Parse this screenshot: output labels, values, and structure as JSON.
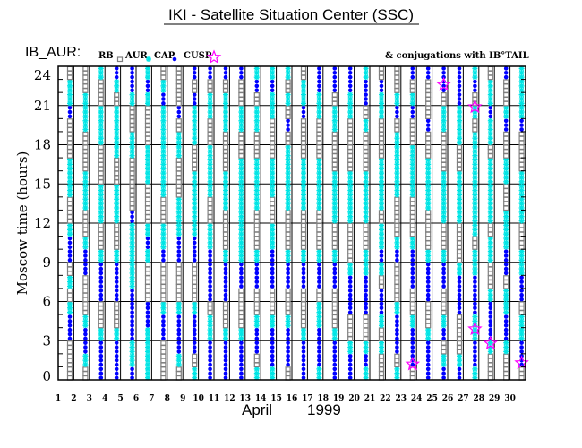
{
  "chart_data": {
    "type": "scatter",
    "title": "IKI - Satellite Situation Center (SSC)",
    "satellite_label": "IB_AUR:",
    "conjugation_note": "& conjugations with IB°TAIL",
    "xlabel_month": "April",
    "xlabel_year": "1999",
    "ylabel": "Moscow time (hours)",
    "ylim": [
      0,
      24
    ],
    "yticks": [
      0,
      3,
      6,
      9,
      12,
      15,
      18,
      21,
      24
    ],
    "xticks": [
      1,
      2,
      3,
      4,
      5,
      6,
      7,
      8,
      9,
      10,
      11,
      12,
      13,
      14,
      15,
      16,
      17,
      18,
      19,
      20,
      21,
      22,
      23,
      24,
      25,
      26,
      27,
      28,
      29,
      30
    ],
    "grid": true,
    "legend_placement": "top",
    "legend": [
      {
        "code": "R",
        "label": "RB",
        "marker": "square-outline",
        "color": "#7f7f7f"
      },
      {
        "code": "A",
        "label": "AUR",
        "marker": "asterisk",
        "color": "#00e5e5"
      },
      {
        "code": "C",
        "label": "CAP",
        "marker": "dot",
        "color": "#0000ff"
      },
      {
        "code": "U",
        "label": "CUSP",
        "marker": "star-outline",
        "color": "#ff00ff"
      }
    ],
    "hourly_region_by_day": {
      "1": "RRRCCARARCCARRAAARRRCAAR",
      "2": "RACCARRRCCARRAAARRRAAARR",
      "3": "CCCARRCCCARRAAARRRAAARRA",
      "4": "CCCARRCCCARRAAARRAAAARAC",
      "5": "CAACCCCAAAAACRRRRAARRACC",
      "6": "AAAACCRRRACARRRAAARRRACA",
      "7": "RRRCCARRRCAARRAAAAAAACAR",
      "8": "RACCCARRRCCAAARRRAARCRRR",
      "9": "ARCCCARRRCCAAAAARRAAACRC",
      "10": "CCCAARCCCCAARRAAAARRAARC",
      "11": "CCCARRCCCARRRAAARRRAAARC",
      "12": "CCCARRRCCAAAAAAAARRAARRC",
      "13": "ARCCARRCCARRRAAAARRAARCA",
      "14": "ACCCARRCCCAARRAAARRRAACA",
      "15": "RCCCARRCCARRRAAAAARCRARA",
      "16": "CCCARRRCCARRRAAAARRRCAAR",
      "17": "ACCCAARCCARRRAAAARRRAACC",
      "18": "CCCARRRCCARRAAAARRRAARCC",
      "19": "CCARRCCCARRRAAAARRRRAACC",
      "20": "ACARRCCCAARRAAAARRRARCCA",
      "21": "RRARACCRACAARAAAARRRAACR",
      "22": "ARCCCARRRCARRRAAAAARCARR",
      "23": "RCCCARRCCCARRRAAAARRCARC",
      "24": "CCCARRCCCARRRAAAARRCRRRC",
      "25": "CARCARRCCARRAAAARRRAARCC",
      "26": "CARRRCCCARRRAAAARRAAACCC",
      "27": "ACCAACCCAARAAAAAAAARARCA",
      "28": "RRACCCARRAARAAAAARAACAAR",
      "29": "RRACCAARCCAAARRAARRCARRC",
      "30": "RCCAARCCAARRAAAARRRCAAAA"
    },
    "cusp_conjugations": [
      {
        "day": 23,
        "hour": 1.2
      },
      {
        "day": 25,
        "hour": 22.6
      },
      {
        "day": 27,
        "hour": 20.9
      },
      {
        "day": 27,
        "hour": 3.9
      },
      {
        "day": 28,
        "hour": 2.8
      },
      {
        "day": 30,
        "hour": 1.3
      }
    ]
  }
}
